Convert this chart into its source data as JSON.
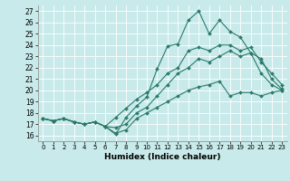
{
  "xlabel": "Humidex (Indice chaleur)",
  "xlim": [
    -0.5,
    23.5
  ],
  "ylim": [
    15.5,
    27.5
  ],
  "yticks": [
    16,
    17,
    18,
    19,
    20,
    21,
    22,
    23,
    24,
    25,
    26,
    27
  ],
  "xticks": [
    0,
    1,
    2,
    3,
    4,
    5,
    6,
    7,
    8,
    9,
    10,
    11,
    12,
    13,
    14,
    15,
    16,
    17,
    18,
    19,
    20,
    21,
    22,
    23
  ],
  "bg_color": "#c8eaea",
  "line_color": "#2a7a6a",
  "lines": [
    [
      17.5,
      17.3,
      17.5,
      17.2,
      17.0,
      17.2,
      16.8,
      16.1,
      17.6,
      18.6,
      19.4,
      21.9,
      23.9,
      24.1,
      26.2,
      27.0,
      25.0,
      26.2,
      25.2,
      24.7,
      23.3,
      22.8,
      21.0,
      20.1
    ],
    [
      17.5,
      17.3,
      17.5,
      17.2,
      17.0,
      17.2,
      16.8,
      17.6,
      18.4,
      19.2,
      19.8,
      20.5,
      21.5,
      22.0,
      23.5,
      23.8,
      23.5,
      24.0,
      24.0,
      23.5,
      23.8,
      22.5,
      21.5,
      20.5
    ],
    [
      17.5,
      17.3,
      17.5,
      17.2,
      17.0,
      17.2,
      16.8,
      16.7,
      17.0,
      18.0,
      18.5,
      19.5,
      20.5,
      21.5,
      22.0,
      22.8,
      22.5,
      23.0,
      23.5,
      23.0,
      23.3,
      21.5,
      20.5,
      20.0
    ],
    [
      17.5,
      17.3,
      17.5,
      17.2,
      17.0,
      17.2,
      16.8,
      16.2,
      16.5,
      17.5,
      18.0,
      18.5,
      19.0,
      19.5,
      20.0,
      20.3,
      20.5,
      20.8,
      19.5,
      19.8,
      19.8,
      19.5,
      19.8,
      20.0
    ]
  ]
}
